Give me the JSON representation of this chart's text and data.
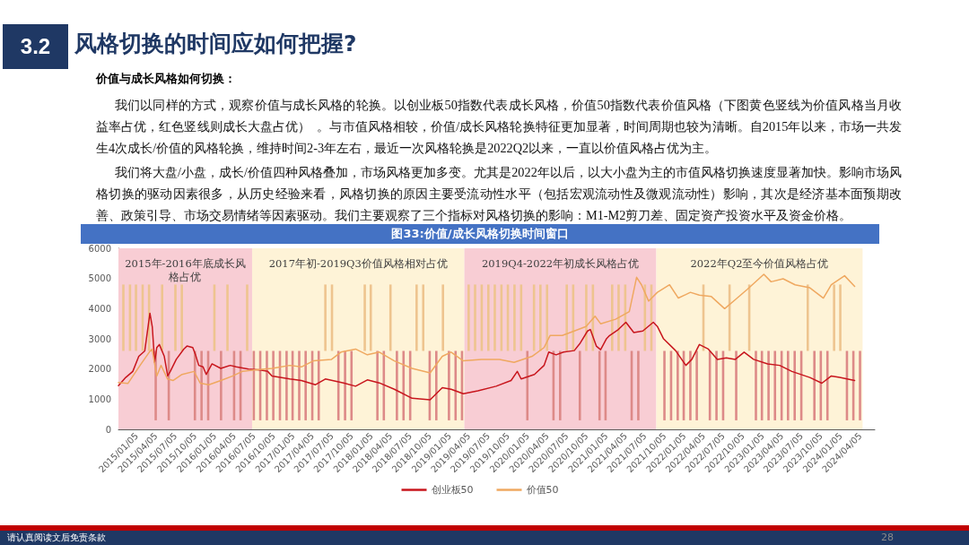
{
  "chart_data": {
    "type": "line",
    "title": "图33:价值/成长风格切换时间窗口",
    "annotations": [
      "3.2",
      "风格切换的时间应如何把握?",
      "价值与成长风格如何切换：",
      "我们以同样的方式，观察价值与成长风格的轮换。以创业板50指数代表成长风格，价值50指数代表价值风格（下图黄色竖线为价值风格当月收益率占优，红色竖线则成长大盘占优）  。与市值风格相较，价值/成长风格轮换特征更加显著，时间周期也较为清晰。自2015年以来，市场一共发生4次成长/价值的风格轮换，维持时间2-3年左右，最近一次风格轮换是2022Q2以来，一直以价值风格占优为主。",
      "我们将大盘/小盘，成长/价值四种风格叠加，市场风格更加多变。尤其是2022年以后，以大小盘为主的市值风格切换速度显著加快。影响市场风格切换的驱动因素很多，从历史经验来看，风格切换的原因主要受流动性水平（包括宏观流动性及微观流动性）影响，其次是经济基本面预期改善、政策引导、市场交易情绪等因素驱动。我们主要观察了三个指标对风格切换的影响：M1-M2剪刀差、固定资产投资水平及资金价格。",
      "请认真阅读文后免责条款",
      "28"
    ],
    "xlim": [
      "2015-01-05",
      "2024-09-05"
    ],
    "xticks": [
      {
        "value": "2015-01-05",
        "label": "2015/01/05"
      },
      {
        "value": "2015-04-05",
        "label": "2015/04/05"
      },
      {
        "value": "2015-07-05",
        "label": "2015/07/05"
      },
      {
        "value": "2015-10-05",
        "label": "2015/10/05"
      },
      {
        "value": "2016-01-05",
        "label": "2016/01/05"
      },
      {
        "value": "2016-04-05",
        "label": "2016/04/05"
      },
      {
        "value": "2016-07-05",
        "label": "2016/07/05"
      },
      {
        "value": "2016-10-05",
        "label": "2016/10/05"
      },
      {
        "value": "2017-01-05",
        "label": "2017/01/05"
      },
      {
        "value": "2017-04-05",
        "label": "2017/04/05"
      },
      {
        "value": "2017-07-05",
        "label": "2017/07/05"
      },
      {
        "value": "2017-10-05",
        "label": "2017/10/05"
      },
      {
        "value": "2018-01-05",
        "label": "2018/01/05"
      },
      {
        "value": "2018-04-05",
        "label": "2018/04/05"
      },
      {
        "value": "2018-07-05",
        "label": "2018/07/05"
      },
      {
        "value": "2018-10-05",
        "label": "2018/10/05"
      },
      {
        "value": "2019-01-05",
        "label": "2019/01/05"
      },
      {
        "value": "2019-04-05",
        "label": "2019/04/05"
      },
      {
        "value": "2019-07-05",
        "label": "2019/07/05"
      },
      {
        "value": "2019-10-05",
        "label": "2019/10/05"
      },
      {
        "value": "2020-01-05",
        "label": "2020/01/05"
      },
      {
        "value": "2020-04-05",
        "label": "2020/04/05"
      },
      {
        "value": "2020-07-05",
        "label": "2020/07/05"
      },
      {
        "value": "2020-10-05",
        "label": "2020/10/05"
      },
      {
        "value": "2021-01-05",
        "label": "2021/01/05"
      },
      {
        "value": "2021-04-05",
        "label": "2021/04/05"
      },
      {
        "value": "2021-07-05",
        "label": "2021/07/05"
      },
      {
        "value": "2021-10-05",
        "label": "2021/10/05"
      },
      {
        "value": "2022-01-05",
        "label": "2022/01/05"
      },
      {
        "value": "2022-04-05",
        "label": "2022/04/05"
      },
      {
        "value": "2022-07-05",
        "label": "2022/07/05"
      },
      {
        "value": "2022-10-05",
        "label": "2022/10/05"
      },
      {
        "value": "2023-01-05",
        "label": "2023/01/05"
      },
      {
        "value": "2023-04-05",
        "label": "2023/04/05"
      },
      {
        "value": "2023-07-05",
        "label": "2023/07/05"
      },
      {
        "value": "2023-10-05",
        "label": "2023/10/05"
      },
      {
        "value": "2024-01-05",
        "label": "2024/01/05"
      },
      {
        "value": "2024-04-05",
        "label": "2024/04/05"
      }
    ],
    "ylim": [
      0,
      6000
    ],
    "yticks": [
      0,
      1000,
      2000,
      3000,
      4000,
      5000,
      6000
    ],
    "grid": false,
    "legend": "bottom",
    "marker": "none",
    "line_style": "solid",
    "bands": [
      {
        "axis": "x",
        "from": "2015-01-05",
        "to": "2016-09-20",
        "label": "2015年-2016年底成长风格占优",
        "color": "#f8cdd4"
      },
      {
        "axis": "x",
        "from": "2016-09-20",
        "to": "2019-06-08",
        "label": "2017年初-2019Q3价值风格相对占优",
        "color": "#fef3d7"
      },
      {
        "axis": "x",
        "from": "2019-06-08",
        "to": "2021-11-20",
        "label": "2019Q4-2022年初成长风格占优",
        "color": "#f8cdd4"
      },
      {
        "axis": "x",
        "from": "2021-11-20",
        "to": "2024-07-10",
        "label": "2022年Q2至今价值风格占优",
        "color": "#fef3d7"
      }
    ],
    "series": [
      {
        "name": "创业板50",
        "color": "#c8161d",
        "x": [
          "2015-01-05",
          "2015-02-08",
          "2015-03-13",
          "2015-04-10",
          "2015-05-08",
          "2015-06-01",
          "2015-06-12",
          "2015-06-23",
          "2015-07-03",
          "2015-07-15",
          "2015-08-07",
          "2015-08-23",
          "2015-09-04",
          "2015-10-02",
          "2015-11-06",
          "2015-11-21",
          "2015-12-18",
          "2015-12-31",
          "2016-01-15",
          "2016-02-04",
          "2016-02-19",
          "2016-03-17",
          "2016-04-27",
          "2016-06-10",
          "2016-07-08",
          "2016-09-03",
          "2016-10-28",
          "2016-12-02",
          "2016-12-22",
          "2017-03-15",
          "2017-05-08",
          "2017-07-13",
          "2017-08-28",
          "2017-11-21",
          "2018-01-16",
          "2018-03-12",
          "2018-05-07",
          "2018-07-16",
          "2018-10-07",
          "2018-12-30",
          "2019-02-25",
          "2019-04-07",
          "2019-06-03",
          "2019-08-10",
          "2019-11-03",
          "2020-01-12",
          "2020-02-10",
          "2020-02-28",
          "2020-04-30",
          "2020-06-14",
          "2020-07-06",
          "2020-08-09",
          "2020-09-13",
          "2020-11-02",
          "2020-11-30",
          "2021-01-03",
          "2021-01-16",
          "2021-02-13",
          "2021-03-05",
          "2021-04-02",
          "2021-04-16",
          "2021-05-27",
          "2021-07-01",
          "2021-08-07",
          "2021-09-18",
          "2021-11-06",
          "2021-11-25",
          "2021-12-23",
          "2022-02-18",
          "2022-04-07",
          "2022-05-05",
          "2022-06-09",
          "2022-07-21",
          "2022-09-01",
          "2022-10-13",
          "2022-11-24",
          "2023-01-04",
          "2023-02-17",
          "2023-04-24",
          "2023-06-19",
          "2023-08-15",
          "2023-11-07",
          "2024-01-02",
          "2024-02-15",
          "2024-03-25",
          "2024-06-03"
        ],
        "values": [
          1450,
          1720,
          1920,
          2420,
          2600,
          3850,
          3400,
          2220,
          2710,
          2810,
          2420,
          1770,
          1920,
          2320,
          2660,
          2760,
          2710,
          2470,
          2120,
          2070,
          1820,
          2170,
          2020,
          2120,
          2070,
          2000,
          1970,
          1920,
          1770,
          1670,
          1620,
          1480,
          1670,
          1540,
          1430,
          1640,
          1540,
          1330,
          1030,
          980,
          1380,
          1330,
          1180,
          1280,
          1430,
          1620,
          1920,
          1670,
          1820,
          2120,
          2560,
          2470,
          2560,
          2610,
          2860,
          3260,
          3310,
          2760,
          2640,
          3010,
          3110,
          3310,
          3550,
          3210,
          3260,
          3550,
          3410,
          3010,
          2610,
          2120,
          2320,
          2810,
          2660,
          2320,
          2370,
          2320,
          2560,
          2320,
          2170,
          2120,
          1920,
          1720,
          1530,
          1770,
          1720,
          1620
        ]
      },
      {
        "name": "价值50",
        "color": "#efa860",
        "x": [
          "2015-01-05",
          "2015-02-18",
          "2015-04-16",
          "2015-05-29",
          "2015-06-11",
          "2015-07-03",
          "2015-07-23",
          "2015-08-22",
          "2015-09-18",
          "2015-10-29",
          "2015-12-24",
          "2016-01-22",
          "2016-03-02",
          "2016-04-27",
          "2016-06-22",
          "2016-08-05",
          "2016-09-30",
          "2016-12-22",
          "2017-03-15",
          "2017-05-08",
          "2017-07-03",
          "2017-09-26",
          "2017-11-09",
          "2018-01-16",
          "2018-03-12",
          "2018-05-07",
          "2018-07-16",
          "2018-10-07",
          "2018-12-30",
          "2019-02-25",
          "2019-04-07",
          "2019-06-03",
          "2019-08-26",
          "2019-11-19",
          "2020-01-26",
          "2020-04-19",
          "2020-06-14",
          "2020-07-12",
          "2020-09-07",
          "2020-11-02",
          "2020-12-27",
          "2021-02-07",
          "2021-03-05",
          "2021-05-14",
          "2021-07-17",
          "2021-08-20",
          "2021-09-12",
          "2021-10-15",
          "2021-11-25",
          "2022-01-21",
          "2022-03-03",
          "2022-04-28",
          "2022-06-09",
          "2022-08-04",
          "2022-10-05",
          "2022-11-24",
          "2023-01-19",
          "2023-04-06",
          "2023-05-10",
          "2023-07-05",
          "2023-08-30",
          "2023-11-07",
          "2024-01-09",
          "2024-02-15",
          "2024-04-17",
          "2024-06-03"
        ],
        "values": [
          1550,
          1520,
          2120,
          2560,
          2660,
          1770,
          2120,
          1670,
          1620,
          1820,
          1920,
          1530,
          1480,
          1620,
          1770,
          1920,
          1970,
          2020,
          2120,
          2070,
          2270,
          2320,
          2560,
          2660,
          2470,
          2560,
          2270,
          2020,
          1870,
          2420,
          2560,
          2270,
          2320,
          2320,
          2220,
          2420,
          2710,
          3110,
          3110,
          3260,
          3410,
          3750,
          3500,
          3650,
          3900,
          5040,
          4790,
          4250,
          4540,
          4790,
          4350,
          4540,
          4450,
          4400,
          4000,
          4300,
          4640,
          5140,
          4890,
          4990,
          4790,
          4690,
          4350,
          4790,
          5090,
          4740
        ]
      },
      {
        "type": "bar",
        "color": "#eec48f",
        "x": [
          "2015-01-28",
          "2015-02-28",
          "2015-03-28",
          "2015-04-28",
          "2015-05-28",
          "2015-07-28",
          "2015-09-28",
          "2015-10-28",
          "2016-03-28",
          "2016-05-28",
          "2016-08-28",
          "2017-08-28",
          "2017-09-28",
          "2018-02-28",
          "2018-03-28",
          "2018-06-28",
          "2018-10-28",
          "2018-11-28",
          "2019-02-28",
          "2019-06-28",
          "2019-07-28",
          "2019-08-28",
          "2019-09-28",
          "2019-10-28",
          "2019-11-28",
          "2019-12-28",
          "2020-01-28",
          "2020-02-28",
          "2020-04-28",
          "2020-05-28",
          "2020-06-28",
          "2020-09-28",
          "2020-10-28",
          "2020-12-28",
          "2021-01-28",
          "2021-04-28",
          "2021-05-28",
          "2021-06-28",
          "2021-09-28",
          "2021-10-28",
          "2022-06-28",
          "2022-10-28",
          "2023-01-28",
          "2023-10-28",
          "2024-02-28",
          "2024-03-28"
        ],
        "base": [
          2600,
          2600,
          2600,
          2600,
          2600,
          2600,
          2600,
          2600,
          2600,
          2600,
          2600,
          2600,
          2600,
          2600,
          2600,
          2600,
          2600,
          2600,
          2600,
          2600,
          2600,
          2600,
          2600,
          2600,
          2600,
          2600,
          2600,
          2600,
          2600,
          2600,
          2600,
          2600,
          2600,
          2600,
          2600,
          2600,
          2600,
          2600,
          2600,
          2600,
          2600,
          2600,
          2600,
          2600,
          2600,
          2600
        ],
        "values": [
          2200,
          2200,
          2200,
          2200,
          2200,
          2200,
          2200,
          2200,
          2200,
          2200,
          2200,
          2200,
          2200,
          2200,
          2200,
          2200,
          2200,
          2200,
          2200,
          2200,
          2200,
          2200,
          2200,
          2200,
          2200,
          2200,
          2200,
          2200,
          2200,
          2200,
          2200,
          2200,
          2200,
          2200,
          2200,
          2200,
          2200,
          2200,
          2200,
          2200,
          2200,
          2200,
          2200,
          2200,
          2200,
          2200
        ]
      },
      {
        "type": "bar",
        "color": "#dd8a88",
        "x": [
          "2015-06-28",
          "2015-08-28",
          "2015-12-28",
          "2016-01-28",
          "2016-02-28",
          "2016-04-28",
          "2016-06-28",
          "2016-07-28",
          "2016-09-28",
          "2016-10-28",
          "2016-11-28",
          "2016-12-28",
          "2017-01-28",
          "2017-02-28",
          "2017-03-28",
          "2017-04-28",
          "2017-05-28",
          "2017-06-28",
          "2017-07-28",
          "2017-10-28",
          "2017-11-28",
          "2017-12-28",
          "2018-04-28",
          "2018-05-28",
          "2018-07-28",
          "2018-08-28",
          "2018-09-28",
          "2018-12-28",
          "2019-01-28",
          "2019-03-28",
          "2019-04-28",
          "2019-05-28",
          "2020-03-28",
          "2020-07-28",
          "2020-08-28",
          "2020-11-28",
          "2021-02-28",
          "2021-03-28",
          "2021-07-28",
          "2021-08-28",
          "2021-12-28",
          "2022-01-28",
          "2022-02-28",
          "2022-03-28",
          "2022-04-28",
          "2022-05-28",
          "2022-07-28",
          "2022-08-28",
          "2022-09-28",
          "2022-11-28",
          "2023-02-28",
          "2023-03-28",
          "2023-04-28",
          "2023-05-28",
          "2023-06-28",
          "2023-07-28",
          "2023-08-28",
          "2023-09-28",
          "2023-11-28",
          "2023-12-28",
          "2024-01-28",
          "2024-04-28",
          "2024-05-28",
          "2024-06-28"
        ],
        "base": [
          300,
          300,
          300,
          300,
          300,
          300,
          300,
          300,
          300,
          300,
          300,
          300,
          300,
          300,
          300,
          300,
          300,
          300,
          300,
          300,
          300,
          300,
          300,
          300,
          300,
          300,
          300,
          300,
          300,
          300,
          300,
          300,
          300,
          300,
          300,
          300,
          300,
          300,
          300,
          300,
          300,
          300,
          300,
          300,
          300,
          300,
          300,
          300,
          300,
          300,
          300,
          300,
          300,
          300,
          300,
          300,
          300,
          300,
          300,
          300,
          300,
          300,
          300,
          300
        ],
        "values": [
          2300,
          2300,
          2300,
          2300,
          2300,
          2300,
          2300,
          2300,
          2300,
          2300,
          2300,
          2300,
          2300,
          2300,
          2300,
          2300,
          2300,
          2300,
          2300,
          2300,
          2300,
          2300,
          2300,
          2300,
          2300,
          2300,
          2300,
          2300,
          2300,
          2300,
          2300,
          2300,
          2300,
          2300,
          2300,
          2300,
          2300,
          2300,
          2300,
          2300,
          2300,
          2300,
          2300,
          2300,
          2300,
          2300,
          2300,
          2300,
          2300,
          2300,
          2300,
          2300,
          2300,
          2300,
          2300,
          2300,
          2300,
          2300,
          2300,
          2300,
          2300,
          2300,
          2300,
          2300
        ]
      }
    ]
  }
}
